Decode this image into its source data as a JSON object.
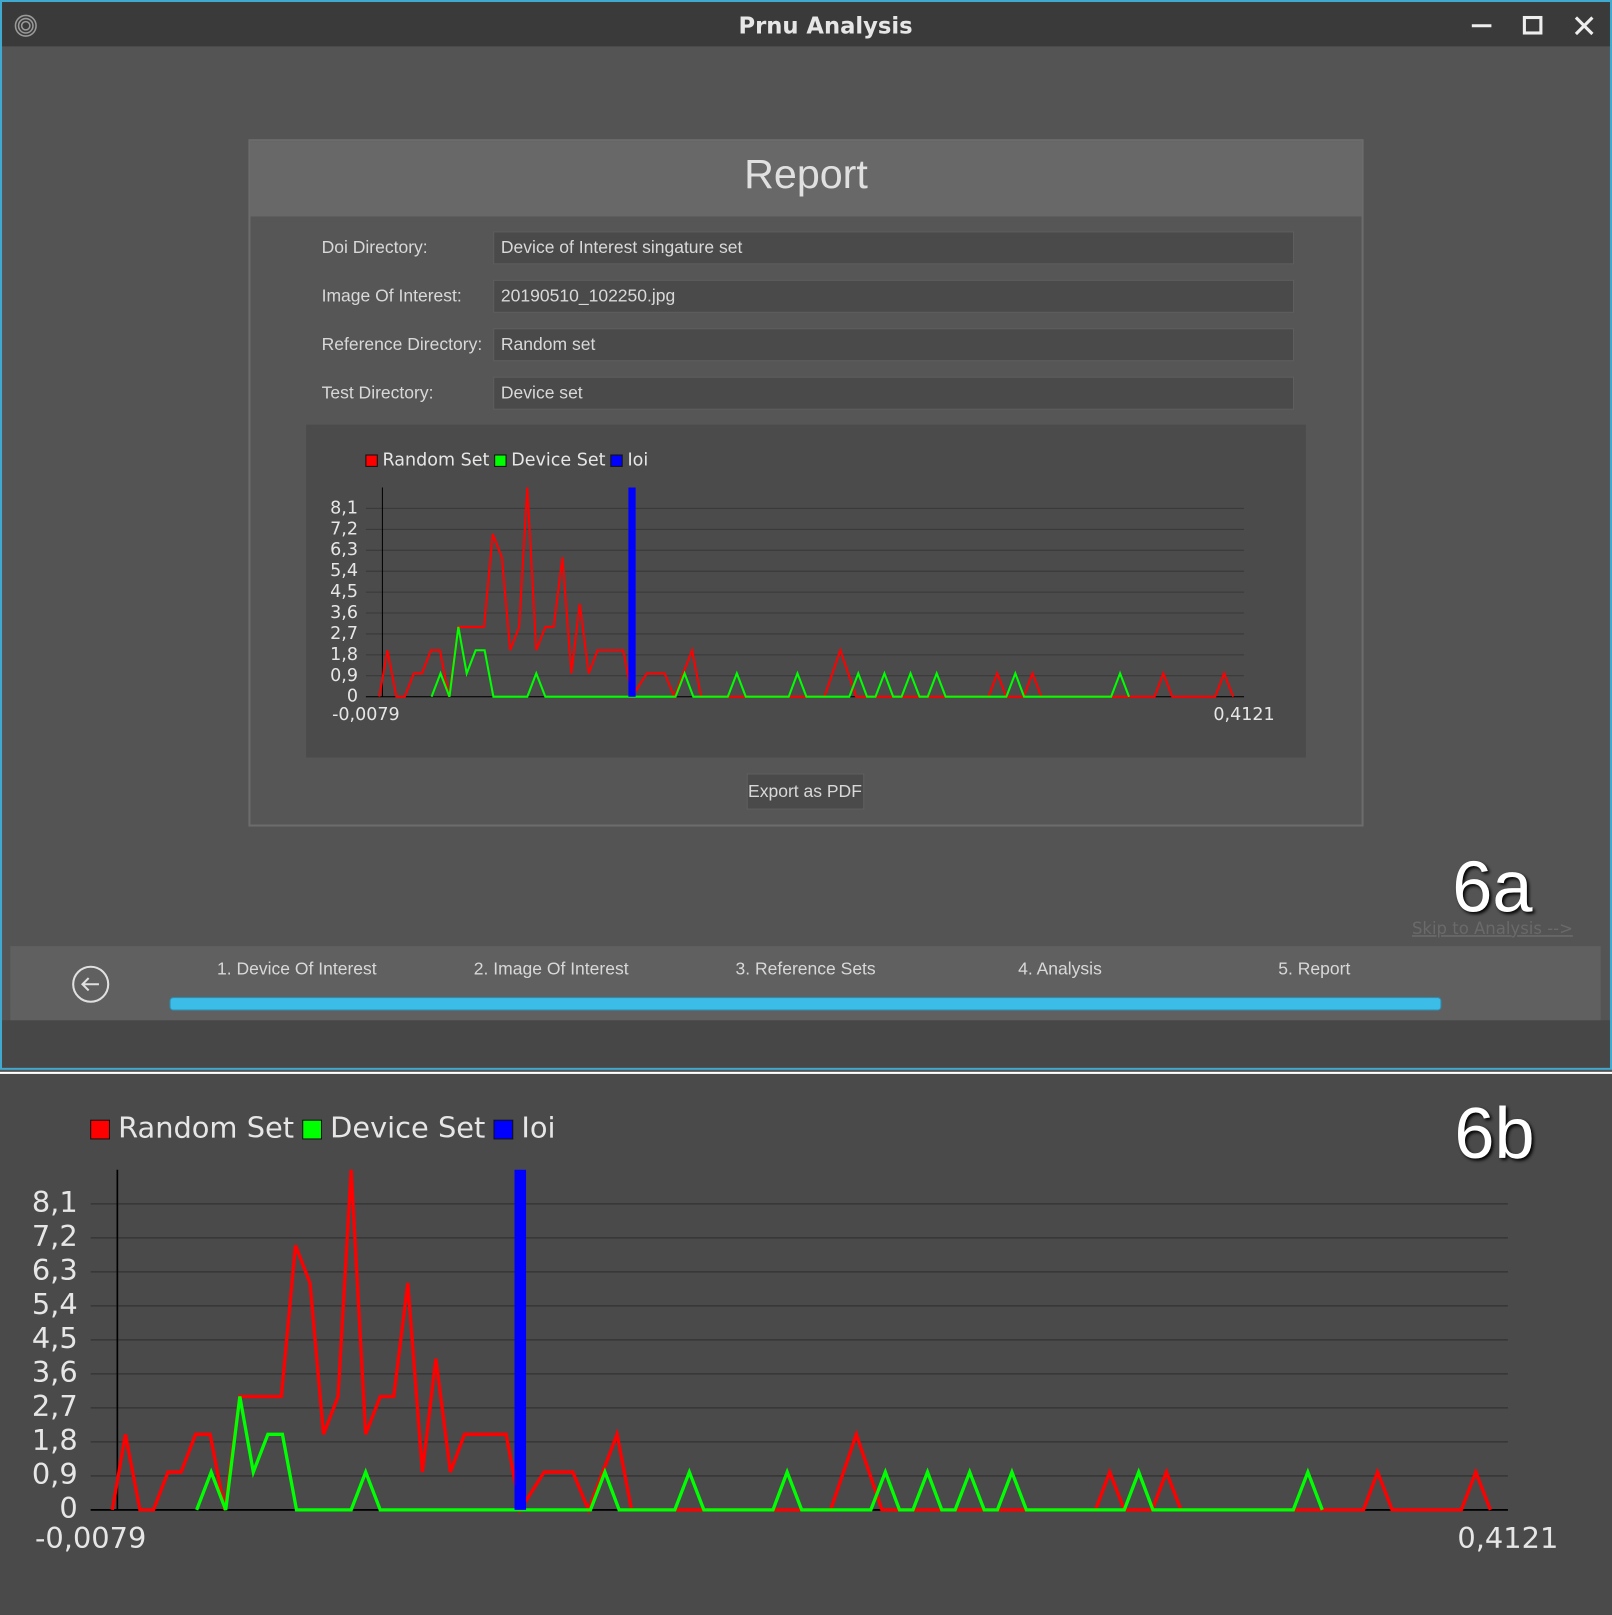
{
  "window": {
    "title": "Prnu Analysis"
  },
  "report": {
    "title": "Report",
    "fields": [
      {
        "label": "Doi Directory:",
        "value": "Device of Interest singature set"
      },
      {
        "label": "Image Of Interest:",
        "value": "20190510_102250.jpg"
      },
      {
        "label": "Reference Directory:",
        "value": "Random set"
      },
      {
        "label": "Test Directory:",
        "value": "Device set"
      }
    ],
    "button": "Export as PDF"
  },
  "chart_data": {
    "type": "line",
    "legend_position": "top-left",
    "grid": true,
    "xlim": [
      -0.0079,
      0.4121
    ],
    "xticks": [
      {
        "value": -0.0079,
        "label": "-0,0079"
      },
      {
        "value": 0.4121,
        "label": "0,4121"
      }
    ],
    "ylim": [
      0,
      9
    ],
    "yticks": [
      0,
      {
        "value": 0.9,
        "label": "0,9"
      },
      {
        "value": 1.8,
        "label": "1,8"
      },
      {
        "value": 2.7,
        "label": "2,7"
      },
      {
        "value": 3.6,
        "label": "3,6"
      },
      {
        "value": 4.5,
        "label": "4,5"
      },
      {
        "value": 5.4,
        "label": "5,4"
      },
      {
        "value": 6.3,
        "label": "6,3"
      },
      {
        "value": 7.2,
        "label": "7,2"
      },
      {
        "value": 8.1,
        "label": "8,1"
      }
    ],
    "series": [
      {
        "name": "Random Set",
        "color": "#ff0000",
        "width": 2,
        "x": [
          -0.0015,
          0.0024,
          0.0067,
          0.0107,
          0.015,
          0.0189,
          0.0232,
          0.0275,
          0.0318,
          0.0363,
          0.0403,
          0.0486,
          0.0528,
          0.0571,
          0.0611,
          0.0654,
          0.0693,
          0.0736,
          0.0779,
          0.0819,
          0.0861,
          0.0904,
          0.0944,
          0.0987,
          0.1029,
          0.1152,
          0.1194,
          0.1265,
          0.135,
          0.1396,
          0.1481,
          0.1524,
          0.2114,
          0.219,
          0.2266,
          0.2899,
          0.2941,
          0.2984,
          0.3067,
          0.3109,
          0.3152,
          0.3693,
          0.3735,
          0.3778,
          0.3983,
          0.4026,
          0.4069
        ],
        "values": [
          0,
          2,
          0,
          0,
          1,
          1,
          2,
          2,
          0,
          3,
          3,
          3,
          7,
          6,
          2,
          3,
          9,
          2,
          3,
          3,
          6,
          1,
          4,
          1,
          2,
          2,
          0,
          1,
          1,
          0,
          2,
          0,
          0,
          2,
          0,
          0,
          1,
          0,
          0,
          1,
          0,
          0,
          1,
          0,
          0,
          1,
          0
        ]
      },
      {
        "name": "Device Set",
        "color": "#00ff00",
        "width": 2,
        "x": [
          0.0235,
          0.0278,
          0.0321,
          0.0363,
          0.0403,
          0.0446,
          0.0489,
          0.0531,
          0.0693,
          0.0736,
          0.0779,
          0.1402,
          0.1445,
          0.1487,
          0.1652,
          0.1695,
          0.1738,
          0.1943,
          0.1985,
          0.2028,
          0.2233,
          0.2276,
          0.2318,
          0.2358,
          0.2401,
          0.2443,
          0.2483,
          0.2526,
          0.2569,
          0.2608,
          0.2651,
          0.2694,
          0.2984,
          0.3027,
          0.3069,
          0.3485,
          0.3528,
          0.3571
        ],
        "values": [
          0,
          1,
          0,
          3,
          1,
          2,
          2,
          0,
          0,
          1,
          0,
          0,
          1,
          0,
          0,
          1,
          0,
          0,
          1,
          0,
          0,
          1,
          0,
          0,
          1,
          0,
          0,
          1,
          0,
          0,
          1,
          0,
          0,
          1,
          0,
          0,
          1,
          0
        ]
      },
      {
        "name": "Ioi",
        "color": "#0000ff",
        "width": 7,
        "x": [
          0.1194,
          0.1194
        ],
        "values": [
          0,
          9
        ]
      }
    ]
  },
  "figure_labels": [
    "6a",
    "6b"
  ],
  "skip_link": "Skip to Analysis -->",
  "steps": [
    "1. Device Of Interest",
    "2. Image Of Interest",
    "3. Reference Sets",
    "4. Analysis",
    "5. Report"
  ]
}
